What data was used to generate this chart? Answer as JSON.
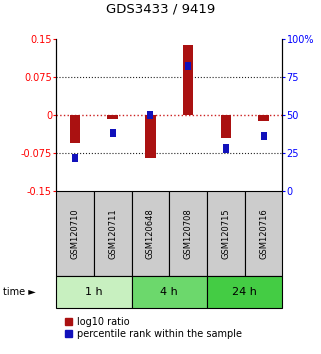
{
  "title": "GDS3433 / 9419",
  "samples": [
    "GSM120710",
    "GSM120711",
    "GSM120648",
    "GSM120708",
    "GSM120715",
    "GSM120716"
  ],
  "log10_ratio": [
    -0.055,
    -0.008,
    -0.085,
    0.138,
    -0.045,
    -0.012
  ],
  "percentile_rank": [
    22,
    38,
    50,
    82,
    28,
    36
  ],
  "time_groups": [
    {
      "label": "1 h",
      "start": 0,
      "end": 2,
      "color": "#c8f0c0"
    },
    {
      "label": "4 h",
      "start": 2,
      "end": 4,
      "color": "#6cd86c"
    },
    {
      "label": "24 h",
      "start": 4,
      "end": 6,
      "color": "#44cc44"
    }
  ],
  "ylim_left": [
    -0.15,
    0.15
  ],
  "ylim_right": [
    0,
    100
  ],
  "yticks_left": [
    -0.15,
    -0.075,
    0,
    0.075,
    0.15
  ],
  "ytick_labels_left": [
    "-0.15",
    "-0.075",
    "0",
    "0.075",
    "0.15"
  ],
  "yticks_right": [
    0,
    25,
    50,
    75,
    100
  ],
  "ytick_labels_right": [
    "0",
    "25",
    "50",
    "75",
    "100%"
  ],
  "bar_color_red": "#aa1111",
  "bar_color_blue": "#1111bb",
  "dotted_color_red": "#cc2222",
  "dotted_color_black": "#222222",
  "sample_box_color": "#cccccc",
  "legend_red_label": "log10 ratio",
  "legend_blue_label": "percentile rank within the sample",
  "bar_width": 0.28,
  "blue_bar_width": 0.16,
  "blue_bar_height": 0.016
}
